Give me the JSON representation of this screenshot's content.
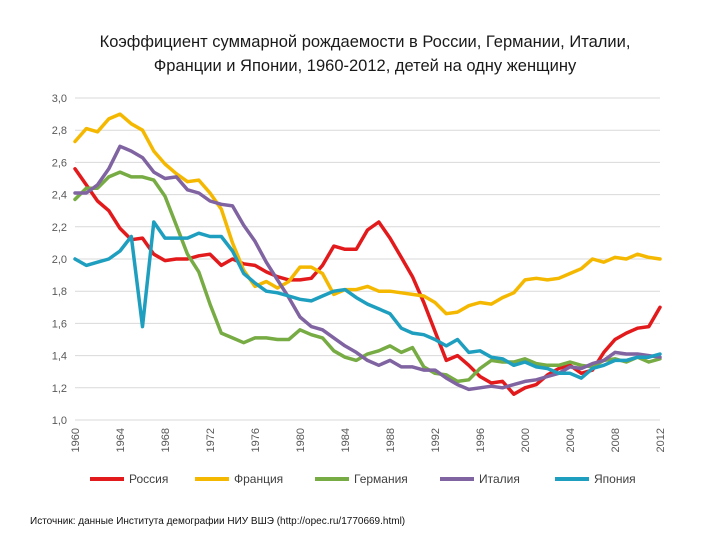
{
  "chart_data": {
    "type": "line",
    "title_lines": [
      "Коэффициент суммарной рождаемости в России, Германии, Италии,",
      "Франции и Японии, 1960-2012, детей на одну женщину"
    ],
    "xlabel": "",
    "ylabel": "",
    "xlim": [
      1960,
      2012
    ],
    "ylim": [
      1.0,
      3.0
    ],
    "x_ticks": [
      "1960",
      "1964",
      "1968",
      "1972",
      "1976",
      "1980",
      "1984",
      "1988",
      "1992",
      "1996",
      "2000",
      "2004",
      "2008",
      "2012"
    ],
    "y_ticks": [
      "1,0",
      "1,2",
      "1,4",
      "1,6",
      "1,8",
      "2,0",
      "2,2",
      "2,4",
      "2,6",
      "2,8",
      "3,0"
    ],
    "grid": true,
    "legend_position": "bottom",
    "x": [
      1960,
      1961,
      1962,
      1963,
      1964,
      1965,
      1966,
      1967,
      1968,
      1969,
      1970,
      1971,
      1972,
      1973,
      1974,
      1975,
      1976,
      1977,
      1978,
      1979,
      1980,
      1981,
      1982,
      1983,
      1984,
      1985,
      1986,
      1987,
      1988,
      1989,
      1990,
      1991,
      1992,
      1993,
      1994,
      1995,
      1996,
      1997,
      1998,
      1999,
      2000,
      2001,
      2002,
      2003,
      2004,
      2005,
      2006,
      2007,
      2008,
      2009,
      2010,
      2011,
      2012
    ],
    "series": [
      {
        "name": "Россия",
        "color": "#e31a1c",
        "values": [
          2.56,
          2.46,
          2.36,
          2.3,
          2.19,
          2.12,
          2.13,
          2.03,
          1.99,
          2.0,
          2.0,
          2.02,
          2.03,
          1.96,
          2.0,
          1.97,
          1.96,
          1.92,
          1.89,
          1.87,
          1.87,
          1.88,
          1.96,
          2.08,
          2.06,
          2.06,
          2.18,
          2.23,
          2.13,
          2.01,
          1.89,
          1.73,
          1.55,
          1.37,
          1.4,
          1.34,
          1.27,
          1.23,
          1.24,
          1.16,
          1.2,
          1.22,
          1.28,
          1.32,
          1.34,
          1.29,
          1.31,
          1.42,
          1.5,
          1.54,
          1.57,
          1.58,
          1.7
        ]
      },
      {
        "name": "Франция",
        "color": "#f5b800",
        "values": [
          2.73,
          2.81,
          2.79,
          2.87,
          2.9,
          2.84,
          2.8,
          2.67,
          2.59,
          2.53,
          2.48,
          2.49,
          2.41,
          2.31,
          2.1,
          1.93,
          1.83,
          1.86,
          1.82,
          1.86,
          1.95,
          1.95,
          1.91,
          1.78,
          1.81,
          1.81,
          1.83,
          1.8,
          1.8,
          1.79,
          1.78,
          1.77,
          1.73,
          1.66,
          1.67,
          1.71,
          1.73,
          1.72,
          1.76,
          1.79,
          1.87,
          1.88,
          1.87,
          1.88,
          1.91,
          1.94,
          2.0,
          1.98,
          2.01,
          2.0,
          2.03,
          2.01,
          2.0
        ]
      },
      {
        "name": "Германия",
        "color": "#77ab43",
        "values": [
          2.37,
          2.44,
          2.44,
          2.51,
          2.54,
          2.51,
          2.51,
          2.49,
          2.39,
          2.21,
          2.03,
          1.92,
          1.72,
          1.54,
          1.51,
          1.48,
          1.51,
          1.51,
          1.5,
          1.5,
          1.56,
          1.53,
          1.51,
          1.43,
          1.39,
          1.37,
          1.41,
          1.43,
          1.46,
          1.42,
          1.45,
          1.33,
          1.29,
          1.28,
          1.24,
          1.25,
          1.32,
          1.37,
          1.36,
          1.36,
          1.38,
          1.35,
          1.34,
          1.34,
          1.36,
          1.34,
          1.33,
          1.37,
          1.38,
          1.36,
          1.39,
          1.36,
          1.38
        ]
      },
      {
        "name": "Италия",
        "color": "#8064a2",
        "values": [
          2.41,
          2.41,
          2.46,
          2.56,
          2.7,
          2.67,
          2.63,
          2.54,
          2.5,
          2.51,
          2.43,
          2.41,
          2.36,
          2.34,
          2.33,
          2.21,
          2.11,
          1.98,
          1.87,
          1.76,
          1.64,
          1.58,
          1.56,
          1.51,
          1.46,
          1.42,
          1.37,
          1.34,
          1.37,
          1.33,
          1.33,
          1.31,
          1.31,
          1.26,
          1.22,
          1.19,
          1.2,
          1.21,
          1.2,
          1.22,
          1.24,
          1.25,
          1.27,
          1.29,
          1.33,
          1.32,
          1.35,
          1.37,
          1.42,
          1.41,
          1.41,
          1.4,
          1.39
        ]
      },
      {
        "name": "Япония",
        "color": "#1f9fbf",
        "values": [
          2.0,
          1.96,
          1.98,
          2.0,
          2.05,
          2.14,
          1.58,
          2.23,
          2.13,
          2.13,
          2.13,
          2.16,
          2.14,
          2.14,
          2.05,
          1.91,
          1.85,
          1.8,
          1.79,
          1.77,
          1.75,
          1.74,
          1.77,
          1.8,
          1.81,
          1.76,
          1.72,
          1.69,
          1.66,
          1.57,
          1.54,
          1.53,
          1.5,
          1.46,
          1.5,
          1.42,
          1.43,
          1.39,
          1.38,
          1.34,
          1.36,
          1.33,
          1.32,
          1.29,
          1.29,
          1.26,
          1.32,
          1.34,
          1.37,
          1.37,
          1.39,
          1.39,
          1.41
        ]
      }
    ]
  },
  "source_text": "Источник: данные Института демографии НИУ ВШЭ (http://opec.ru/1770669.html)"
}
